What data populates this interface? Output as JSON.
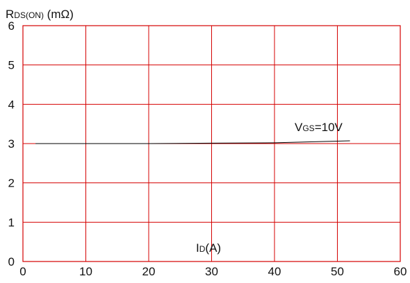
{
  "chart_data": {
    "type": "line",
    "ylabel_main": "R",
    "ylabel_sub": "DS(ON)",
    "ylabel_unit": " (mΩ)",
    "xlabel_main": "I",
    "xlabel_sub": "D",
    "xlabel_unit": "(A)",
    "xlim": [
      0,
      60
    ],
    "ylim": [
      0,
      6
    ],
    "x_ticks": [
      "0",
      "10",
      "20",
      "30",
      "40",
      "50",
      "60"
    ],
    "y_ticks": [
      "0",
      "1",
      "2",
      "3",
      "4",
      "5",
      "6"
    ],
    "grid": true,
    "grid_color": "#d40000",
    "line_color": "#000000",
    "series": [
      {
        "annotation_main": "V",
        "annotation_sub": "GS",
        "annotation_value": "=10V",
        "x": [
          2,
          10,
          20,
          30,
          40,
          52
        ],
        "y": [
          3.0,
          3.0,
          3.0,
          3.01,
          3.02,
          3.07
        ]
      }
    ]
  }
}
